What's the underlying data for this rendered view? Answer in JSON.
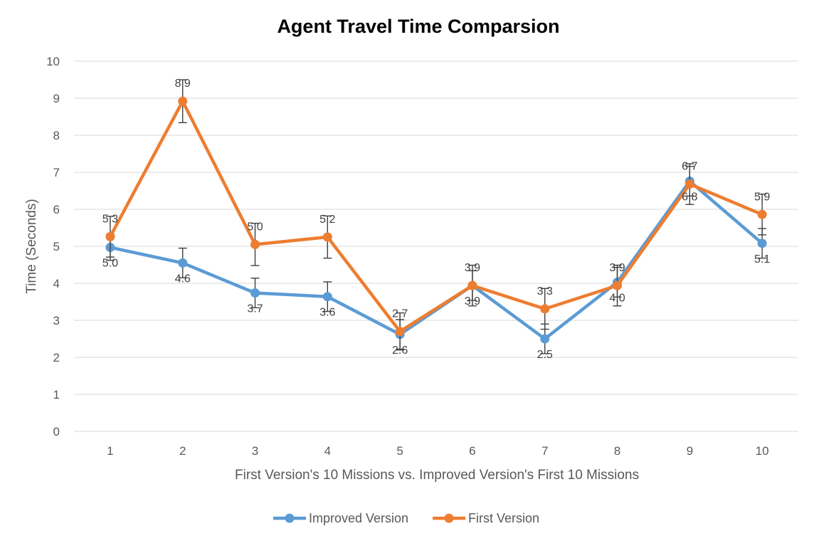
{
  "chart_data": {
    "type": "line",
    "title": "Agent Travel Time Comparsion",
    "xlabel": "First Version's 10 Missions vs. Improved Version's First 10 Missions",
    "ylabel": "Time (Seconds)",
    "ylim": [
      0,
      10
    ],
    "yticks": [
      0,
      1,
      2,
      3,
      4,
      5,
      6,
      7,
      8,
      9,
      10
    ],
    "categories": [
      "1",
      "2",
      "3",
      "4",
      "5",
      "6",
      "7",
      "8",
      "9",
      "10"
    ],
    "grid": true,
    "legend_position": "bottom",
    "series": [
      {
        "name": "Improved Version",
        "color": "#5b9bd5",
        "values": [
          4.97,
          4.55,
          3.74,
          3.64,
          2.62,
          3.94,
          2.5,
          4.03,
          6.76,
          5.08
        ],
        "labels": [
          "5.0",
          "4.6",
          "3.7",
          "3.6",
          "2.6",
          "3.9",
          "2.5",
          "4.0",
          "6.8",
          "5.1"
        ],
        "error": [
          0.35,
          0.4,
          0.4,
          0.4,
          0.4,
          0.4,
          0.4,
          0.4,
          0.4,
          0.4
        ]
      },
      {
        "name": "First Version",
        "color": "#ed7d31",
        "values": [
          5.26,
          8.92,
          5.05,
          5.25,
          2.7,
          3.94,
          3.31,
          3.94,
          6.68,
          5.86
        ],
        "labels": [
          "5.3",
          "8.9",
          "5.0",
          "5.2",
          "2.7",
          "3.9",
          "3.3",
          "3.9",
          "6.7",
          "5.9"
        ],
        "error": [
          0.55,
          0.58,
          0.57,
          0.57,
          0.5,
          0.55,
          0.55,
          0.55,
          0.55,
          0.55
        ]
      }
    ]
  }
}
